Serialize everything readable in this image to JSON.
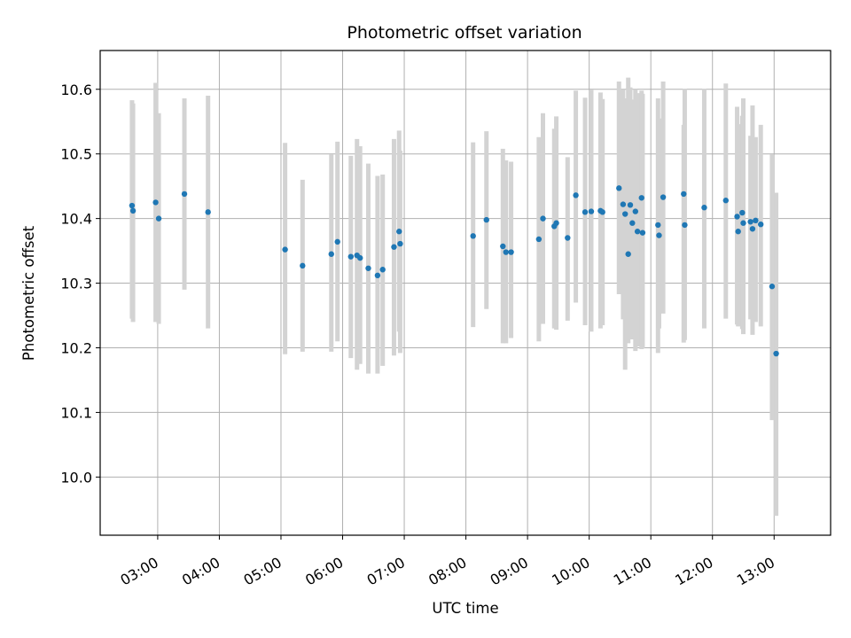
{
  "chart_data": {
    "type": "scatter",
    "title": "Photometric offset variation",
    "xlabel": "UTC time",
    "ylabel": "Photometric offset",
    "x_is_time": true,
    "xlim": [
      "02:04",
      "13:55"
    ],
    "ylim": [
      9.91,
      10.66
    ],
    "x_ticks": [
      "03:00",
      "04:00",
      "05:00",
      "06:00",
      "07:00",
      "08:00",
      "09:00",
      "10:00",
      "11:00",
      "12:00",
      "13:00"
    ],
    "y_ticks": [
      "10.0",
      "10.1",
      "10.2",
      "10.3",
      "10.4",
      "10.5",
      "10.6"
    ],
    "grid": true,
    "legend": "none",
    "colors": {
      "point": "#1f77b4",
      "errorbar": "#d3d3d3",
      "grid": "#b0b0b0",
      "axis": "#000000"
    },
    "series": [
      {
        "x": [
          "02:35",
          "02:36",
          "02:58",
          "03:01",
          "03:26",
          "03:49",
          "05:04",
          "05:21",
          "05:49",
          "05:55",
          "06:08",
          "06:14",
          "06:17",
          "06:25",
          "06:34",
          "06:39",
          "06:50",
          "06:55",
          "06:56",
          "08:07",
          "08:20",
          "08:36",
          "08:39",
          "08:44",
          "09:11",
          "09:15",
          "09:26",
          "09:28",
          "09:39",
          "09:47",
          "09:56",
          "10:02",
          "10:11",
          "10:13",
          "10:29",
          "10:33",
          "10:35",
          "10:38",
          "10:40",
          "10:42",
          "10:45",
          "10:47",
          "10:51",
          "10:52",
          "11:07",
          "11:08",
          "11:12",
          "11:32",
          "11:33",
          "11:52",
          "12:13",
          "12:24",
          "12:25",
          "12:29",
          "12:30",
          "12:37",
          "12:39",
          "12:42",
          "12:47",
          "12:58",
          "13:02"
        ],
        "y": [
          10.42,
          10.412,
          10.425,
          10.4,
          10.438,
          10.41,
          10.352,
          10.327,
          10.345,
          10.364,
          10.341,
          10.343,
          10.339,
          10.323,
          10.312,
          10.321,
          10.356,
          10.38,
          10.361,
          10.373,
          10.398,
          10.357,
          10.348,
          10.348,
          10.368,
          10.4,
          10.388,
          10.393,
          10.37,
          10.436,
          10.41,
          10.411,
          10.412,
          10.41,
          10.447,
          10.422,
          10.407,
          10.345,
          10.421,
          10.393,
          10.411,
          10.38,
          10.432,
          10.378,
          10.39,
          10.374,
          10.433,
          10.438,
          10.39,
          10.417,
          10.428,
          10.403,
          10.38,
          10.409,
          10.393,
          10.395,
          10.384,
          10.397,
          10.391,
          10.295,
          10.191
        ],
        "y_low": [
          10.245,
          10.24,
          10.24,
          10.237,
          10.29,
          10.23,
          10.19,
          10.194,
          10.194,
          10.21,
          10.184,
          10.166,
          10.175,
          10.16,
          10.16,
          10.172,
          10.188,
          10.225,
          10.192,
          10.232,
          10.26,
          10.207,
          10.207,
          10.215,
          10.21,
          10.237,
          10.23,
          10.228,
          10.242,
          10.27,
          10.235,
          10.225,
          10.23,
          10.235,
          10.283,
          10.244,
          10.166,
          10.207,
          10.235,
          10.213,
          10.195,
          10.202,
          10.198,
          10.199,
          10.192,
          10.23,
          10.253,
          10.208,
          10.212,
          10.23,
          10.245,
          10.236,
          10.233,
          10.229,
          10.221,
          10.244,
          10.22,
          10.24,
          10.233,
          10.088,
          9.94
        ],
        "y_high": [
          10.583,
          10.578,
          10.61,
          10.563,
          10.586,
          10.59,
          10.517,
          10.46,
          10.499,
          10.519,
          10.497,
          10.523,
          10.512,
          10.485,
          10.466,
          10.468,
          10.523,
          10.536,
          10.505,
          10.518,
          10.535,
          10.508,
          10.49,
          10.488,
          10.526,
          10.563,
          10.539,
          10.558,
          10.495,
          10.598,
          10.587,
          10.599,
          10.595,
          10.585,
          10.612,
          10.6,
          10.586,
          10.618,
          10.603,
          10.584,
          10.6,
          10.594,
          10.598,
          10.593,
          10.586,
          10.555,
          10.612,
          10.545,
          10.601,
          10.601,
          10.609,
          10.573,
          10.546,
          10.559,
          10.586,
          10.528,
          10.575,
          10.526,
          10.545,
          10.499,
          10.44
        ]
      }
    ]
  }
}
